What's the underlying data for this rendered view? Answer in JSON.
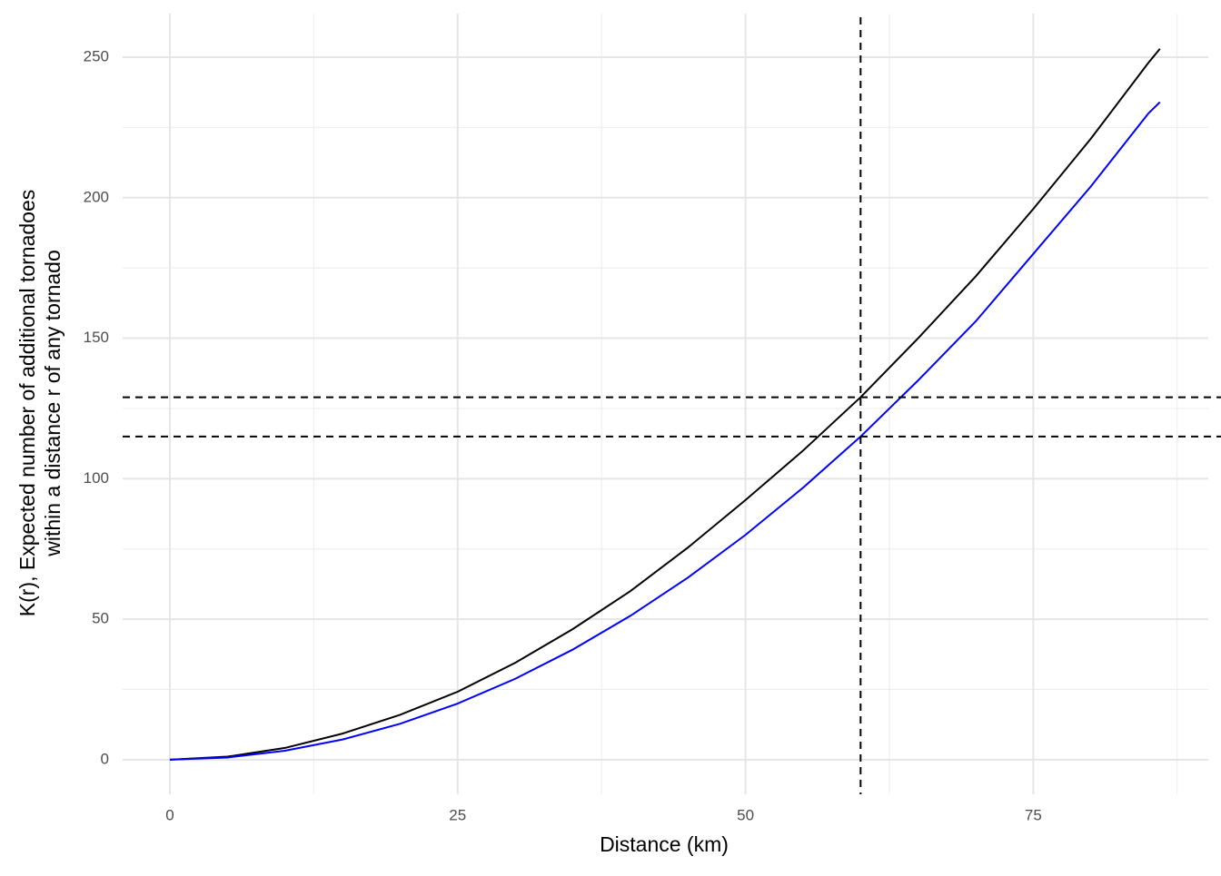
{
  "chart_data": {
    "type": "line",
    "xlabel": "Distance (km)",
    "ylabel": [
      "K(r), Expected number of additional tornadoes",
      "within a distance r of any tornado"
    ],
    "x": [
      0,
      5,
      10,
      15,
      20,
      25,
      30,
      35,
      40,
      45,
      50,
      55,
      60,
      65,
      70,
      75,
      80,
      85,
      86
    ],
    "series": [
      {
        "color": "#000000",
        "values": [
          0,
          1.1,
          4.2,
          9.3,
          16,
          24.2,
          34.5,
          46.5,
          60,
          75.5,
          92.4,
          110,
          129,
          150,
          172,
          196,
          221,
          248,
          253
        ]
      },
      {
        "color": "#0000ff",
        "values": [
          0,
          0.8,
          3.2,
          7.2,
          12.8,
          20,
          28.8,
          39.2,
          51.2,
          64.8,
          80,
          96.8,
          115,
          135,
          156,
          180,
          204,
          230,
          234
        ]
      }
    ],
    "vlines": [
      60
    ],
    "hlines": [
      129,
      115
    ],
    "xlim": [
      -4.1,
      90.2
    ],
    "ylim": [
      -12.3,
      265.5
    ],
    "xticks": [
      0,
      25,
      50,
      75
    ],
    "yticks": [
      0,
      50,
      100,
      150,
      200,
      250
    ],
    "minor_xticks": [
      12.5,
      37.5,
      62.5,
      87.5
    ],
    "minor_yticks": [
      25,
      75,
      125,
      175,
      225
    ],
    "grid": true
  }
}
